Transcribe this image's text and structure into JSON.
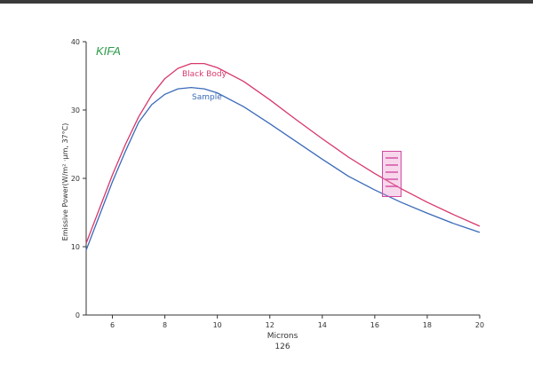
{
  "chart_data": {
    "type": "line",
    "brand": "KIFA",
    "title": "",
    "xlabel": "Microns",
    "ylabel": "Emissive Power(W/m² ·μm, 37°C)",
    "footnote": "126",
    "xlim": [
      5,
      20
    ],
    "ylim": [
      0,
      40
    ],
    "x_ticks": [
      6,
      8,
      10,
      12,
      14,
      16,
      18,
      20
    ],
    "y_ticks": [
      0,
      10,
      20,
      30,
      40
    ],
    "grid": false,
    "series": [
      {
        "name": "Black Body",
        "color": "#d8386a",
        "x": [
          5,
          5.5,
          6,
          6.5,
          7,
          7.5,
          8,
          8.5,
          9,
          9.5,
          10,
          11,
          12,
          13,
          14,
          15,
          16,
          17,
          18,
          19,
          20
        ],
        "y": [
          10.5,
          15.5,
          20.5,
          25,
          29,
          32.2,
          34.6,
          36.1,
          36.8,
          36.8,
          36.2,
          34.2,
          31.5,
          28.6,
          25.8,
          23.1,
          20.7,
          18.5,
          16.5,
          14.7,
          13.0
        ]
      },
      {
        "name": "Sample",
        "color": "#3a6ab8",
        "x": [
          5,
          5.5,
          6,
          6.5,
          7,
          7.5,
          8,
          8.5,
          9,
          9.5,
          10,
          11,
          12,
          13,
          14,
          15,
          16,
          17,
          18,
          19,
          20
        ],
        "y": [
          9.5,
          14.5,
          19.5,
          24,
          28.2,
          30.8,
          32.3,
          33.1,
          33.3,
          33.1,
          32.5,
          30.5,
          28.0,
          25.4,
          22.8,
          20.3,
          18.3,
          16.5,
          14.9,
          13.4,
          12.1
        ]
      }
    ],
    "annotations": [
      "Black Body",
      "Sample"
    ],
    "colors": {
      "axis": "#333333",
      "brand": "#2e9b4a"
    }
  }
}
